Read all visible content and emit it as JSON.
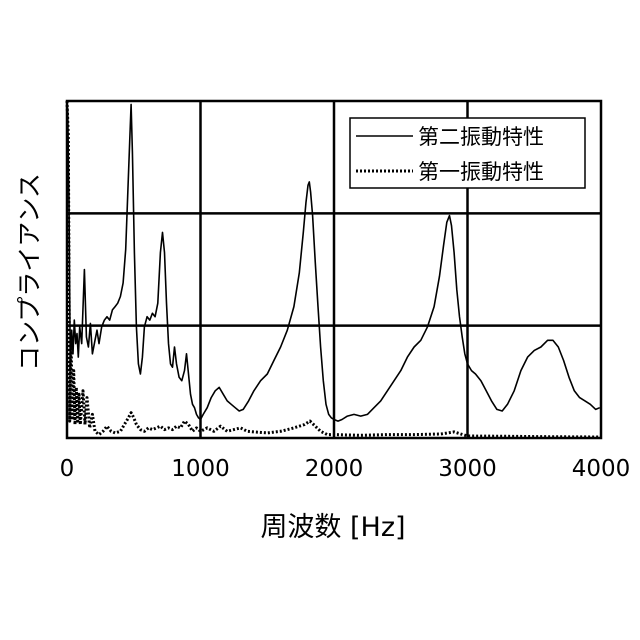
{
  "chart_data": {
    "type": "line",
    "xlabel": "周波数 [Hz]",
    "ylabel": "コンプライアンス",
    "xlim": [
      0,
      4000
    ],
    "ylim": [
      0,
      1
    ],
    "xticks": [
      0,
      1000,
      2000,
      3000,
      4000
    ],
    "xtick_labels": [
      "0",
      "1000",
      "2000",
      "3000",
      "4000"
    ],
    "y_tick_labels_shown": false,
    "grid": true,
    "legend_position": "top-right",
    "series": [
      {
        "name": "第二振動特性",
        "style": "solid",
        "points": [
          [
            5,
            0.98
          ],
          [
            15,
            0.7
          ],
          [
            25,
            0.2
          ],
          [
            35,
            0.32
          ],
          [
            45,
            0.25
          ],
          [
            55,
            0.35
          ],
          [
            65,
            0.28
          ],
          [
            75,
            0.31
          ],
          [
            85,
            0.24
          ],
          [
            95,
            0.33
          ],
          [
            110,
            0.28
          ],
          [
            130,
            0.5
          ],
          [
            145,
            0.3
          ],
          [
            160,
            0.27
          ],
          [
            175,
            0.34
          ],
          [
            190,
            0.25
          ],
          [
            210,
            0.29
          ],
          [
            225,
            0.32
          ],
          [
            240,
            0.28
          ],
          [
            260,
            0.33
          ],
          [
            280,
            0.35
          ],
          [
            300,
            0.36
          ],
          [
            320,
            0.35
          ],
          [
            340,
            0.38
          ],
          [
            360,
            0.39
          ],
          [
            380,
            0.4
          ],
          [
            400,
            0.42
          ],
          [
            420,
            0.46
          ],
          [
            440,
            0.56
          ],
          [
            455,
            0.72
          ],
          [
            470,
            0.88
          ],
          [
            480,
            0.99
          ],
          [
            490,
            0.85
          ],
          [
            505,
            0.55
          ],
          [
            520,
            0.33
          ],
          [
            535,
            0.22
          ],
          [
            550,
            0.19
          ],
          [
            565,
            0.24
          ],
          [
            580,
            0.33
          ],
          [
            600,
            0.36
          ],
          [
            620,
            0.35
          ],
          [
            640,
            0.37
          ],
          [
            660,
            0.36
          ],
          [
            680,
            0.4
          ],
          [
            700,
            0.55
          ],
          [
            715,
            0.61
          ],
          [
            730,
            0.55
          ],
          [
            745,
            0.4
          ],
          [
            760,
            0.28
          ],
          [
            775,
            0.22
          ],
          [
            790,
            0.21
          ],
          [
            805,
            0.27
          ],
          [
            820,
            0.22
          ],
          [
            840,
            0.18
          ],
          [
            860,
            0.17
          ],
          [
            880,
            0.2
          ],
          [
            895,
            0.25
          ],
          [
            910,
            0.19
          ],
          [
            925,
            0.13
          ],
          [
            940,
            0.1
          ],
          [
            955,
            0.09
          ],
          [
            970,
            0.07
          ],
          [
            985,
            0.06
          ],
          [
            1000,
            0.055
          ],
          [
            1020,
            0.07
          ],
          [
            1050,
            0.09
          ],
          [
            1080,
            0.12
          ],
          [
            1110,
            0.14
          ],
          [
            1140,
            0.15
          ],
          [
            1170,
            0.13
          ],
          [
            1200,
            0.11
          ],
          [
            1230,
            0.1
          ],
          [
            1260,
            0.09
          ],
          [
            1290,
            0.08
          ],
          [
            1320,
            0.085
          ],
          [
            1360,
            0.11
          ],
          [
            1400,
            0.14
          ],
          [
            1450,
            0.17
          ],
          [
            1500,
            0.19
          ],
          [
            1550,
            0.23
          ],
          [
            1600,
            0.27
          ],
          [
            1650,
            0.32
          ],
          [
            1700,
            0.39
          ],
          [
            1740,
            0.49
          ],
          [
            1770,
            0.61
          ],
          [
            1790,
            0.7
          ],
          [
            1805,
            0.75
          ],
          [
            1815,
            0.76
          ],
          [
            1825,
            0.73
          ],
          [
            1840,
            0.66
          ],
          [
            1860,
            0.52
          ],
          [
            1880,
            0.39
          ],
          [
            1900,
            0.27
          ],
          [
            1920,
            0.17
          ],
          [
            1940,
            0.1
          ],
          [
            1960,
            0.07
          ],
          [
            1980,
            0.06
          ],
          [
            2000,
            0.055
          ],
          [
            2030,
            0.05
          ],
          [
            2060,
            0.055
          ],
          [
            2100,
            0.065
          ],
          [
            2150,
            0.07
          ],
          [
            2200,
            0.065
          ],
          [
            2250,
            0.07
          ],
          [
            2300,
            0.09
          ],
          [
            2350,
            0.11
          ],
          [
            2400,
            0.14
          ],
          [
            2450,
            0.17
          ],
          [
            2500,
            0.2
          ],
          [
            2550,
            0.24
          ],
          [
            2600,
            0.27
          ],
          [
            2650,
            0.29
          ],
          [
            2700,
            0.33
          ],
          [
            2750,
            0.39
          ],
          [
            2790,
            0.48
          ],
          [
            2820,
            0.57
          ],
          [
            2845,
            0.64
          ],
          [
            2865,
            0.66
          ],
          [
            2880,
            0.63
          ],
          [
            2900,
            0.55
          ],
          [
            2920,
            0.44
          ],
          [
            2940,
            0.36
          ],
          [
            2960,
            0.3
          ],
          [
            2980,
            0.25
          ],
          [
            3000,
            0.22
          ],
          [
            3030,
            0.2
          ],
          [
            3060,
            0.19
          ],
          [
            3100,
            0.17
          ],
          [
            3140,
            0.14
          ],
          [
            3180,
            0.11
          ],
          [
            3220,
            0.085
          ],
          [
            3260,
            0.08
          ],
          [
            3300,
            0.1
          ],
          [
            3350,
            0.14
          ],
          [
            3400,
            0.2
          ],
          [
            3450,
            0.24
          ],
          [
            3500,
            0.26
          ],
          [
            3550,
            0.27
          ],
          [
            3600,
            0.29
          ],
          [
            3640,
            0.29
          ],
          [
            3680,
            0.27
          ],
          [
            3720,
            0.23
          ],
          [
            3760,
            0.18
          ],
          [
            3800,
            0.14
          ],
          [
            3840,
            0.12
          ],
          [
            3880,
            0.11
          ],
          [
            3920,
            0.1
          ],
          [
            3960,
            0.085
          ],
          [
            3990,
            0.09
          ]
        ]
      },
      {
        "name": "第一振動特性",
        "style": "dotted",
        "points": [
          [
            0,
            1.0
          ],
          [
            10,
            0.9
          ],
          [
            20,
            0.05
          ],
          [
            30,
            0.3
          ],
          [
            40,
            0.06
          ],
          [
            50,
            0.2
          ],
          [
            60,
            0.04
          ],
          [
            70,
            0.15
          ],
          [
            80,
            0.05
          ],
          [
            90,
            0.13
          ],
          [
            100,
            0.04
          ],
          [
            120,
            0.14
          ],
          [
            135,
            0.04
          ],
          [
            150,
            0.12
          ],
          [
            170,
            0.03
          ],
          [
            190,
            0.07
          ],
          [
            210,
            0.02
          ],
          [
            240,
            0.01
          ],
          [
            270,
            0.02
          ],
          [
            300,
            0.035
          ],
          [
            330,
            0.02
          ],
          [
            360,
            0.015
          ],
          [
            400,
            0.02
          ],
          [
            430,
            0.04
          ],
          [
            460,
            0.06
          ],
          [
            480,
            0.075
          ],
          [
            500,
            0.06
          ],
          [
            520,
            0.04
          ],
          [
            550,
            0.025
          ],
          [
            580,
            0.02
          ],
          [
            610,
            0.03
          ],
          [
            640,
            0.025
          ],
          [
            670,
            0.03
          ],
          [
            700,
            0.035
          ],
          [
            730,
            0.025
          ],
          [
            760,
            0.03
          ],
          [
            790,
            0.025
          ],
          [
            820,
            0.035
          ],
          [
            850,
            0.03
          ],
          [
            880,
            0.05
          ],
          [
            910,
            0.04
          ],
          [
            940,
            0.02
          ],
          [
            970,
            0.03
          ],
          [
            1000,
            0.02
          ],
          [
            1050,
            0.03
          ],
          [
            1100,
            0.02
          ],
          [
            1150,
            0.035
          ],
          [
            1200,
            0.02
          ],
          [
            1250,
            0.025
          ],
          [
            1300,
            0.03
          ],
          [
            1350,
            0.02
          ],
          [
            1400,
            0.018
          ],
          [
            1500,
            0.015
          ],
          [
            1600,
            0.02
          ],
          [
            1700,
            0.03
          ],
          [
            1780,
            0.04
          ],
          [
            1820,
            0.05
          ],
          [
            1860,
            0.035
          ],
          [
            1900,
            0.02
          ],
          [
            1950,
            0.01
          ],
          [
            2000,
            0.01
          ],
          [
            2200,
            0.008
          ],
          [
            2400,
            0.01
          ],
          [
            2600,
            0.01
          ],
          [
            2800,
            0.012
          ],
          [
            2900,
            0.018
          ],
          [
            2950,
            0.012
          ],
          [
            3000,
            0.006
          ],
          [
            3300,
            0.005
          ],
          [
            3600,
            0.004
          ],
          [
            4000,
            0.003
          ]
        ]
      }
    ]
  }
}
